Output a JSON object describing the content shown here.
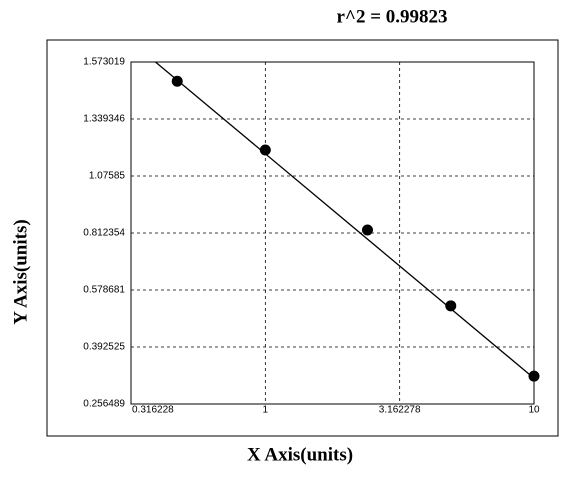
{
  "chart_data": {
    "type": "scatter",
    "title": "r^2 = 0.99823",
    "x_label": "X Axis(units)",
    "y_label": "Y Axis(units)",
    "x": [
      0.47,
      1,
      2.4,
      4.9,
      10
    ],
    "y": [
      1.494,
      1.196,
      0.826,
      0.527,
      0.323
    ],
    "fit": {
      "x": [
        0.39,
        10
      ],
      "y": [
        1.573019,
        0.318
      ]
    },
    "color": "#000000",
    "xscale": "log",
    "xlim": [
      0.316228,
      10
    ],
    "xticks": [
      0.316228,
      1,
      3.162278,
      10
    ],
    "ylim": [
      0.256489,
      1.573019
    ],
    "yticks": [
      0.256489,
      0.392525,
      0.578681,
      0.812354,
      1.07585,
      1.339346,
      1.573019
    ],
    "grid": true
  }
}
